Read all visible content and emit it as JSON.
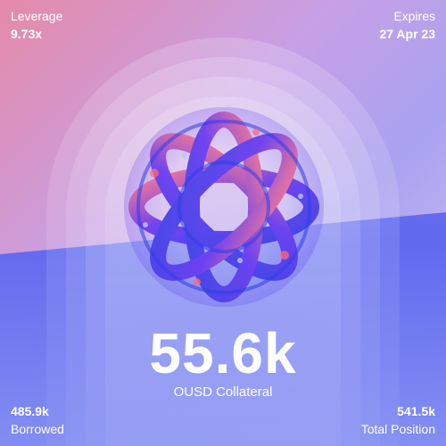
{
  "leverage": {
    "label": "Leverage",
    "value": "9.73x"
  },
  "expires": {
    "label": "Expires",
    "value": "27 Apr 23"
  },
  "collateral": {
    "value": "55.6k",
    "label": "OUSD Collateral"
  },
  "borrowed": {
    "value": "485.9k",
    "label": "Borrowed"
  },
  "total_position": {
    "value": "541.5k",
    "label": "Total Position"
  },
  "colors": {
    "text": "#ffffff",
    "knot_primary": "#6b3df0",
    "knot_highlight": "#ff6a7a",
    "background_top": "#e58aa8",
    "background_bottom": "#5d67ef"
  }
}
